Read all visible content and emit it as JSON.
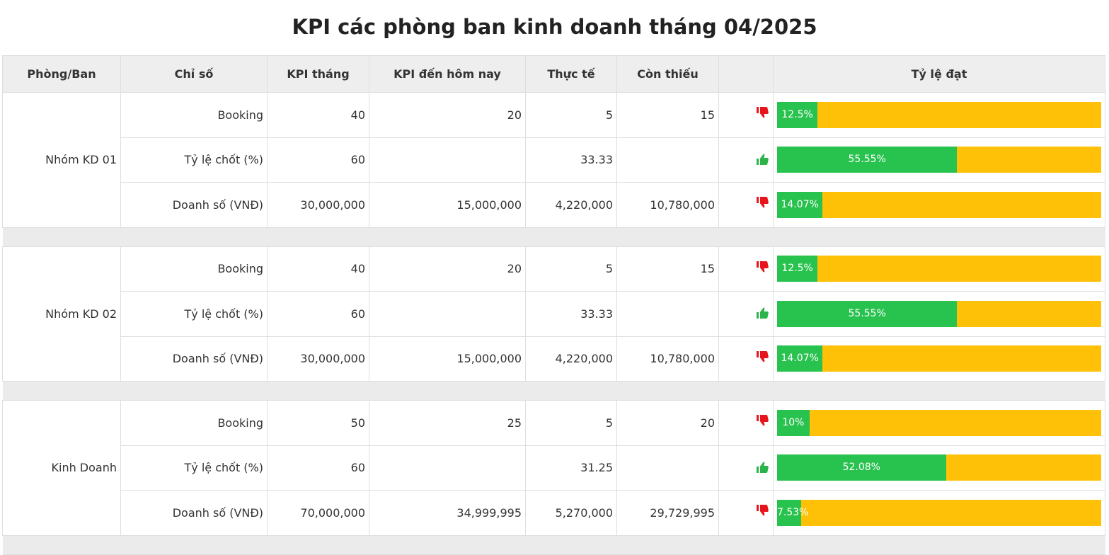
{
  "title": "KPI các phòng ban kinh doanh tháng 04/2025",
  "headers": {
    "dept": "Phòng/Ban",
    "metric": "Chỉ số",
    "kpi_month": "KPI tháng",
    "kpi_today": "KPI đến hôm nay",
    "actual": "Thực tế",
    "remaining": "Còn thiếu",
    "status": "",
    "rate": "Tỷ lệ đạt"
  },
  "colors": {
    "bar_fill": "#28c24e",
    "bar_background": "#ffc107",
    "thumb_up": "#2bb44a",
    "thumb_down": "#e8141c"
  },
  "groups": [
    {
      "name": "Nhóm KD 01",
      "rows": [
        {
          "metric": "Booking",
          "kpi_month": "40",
          "kpi_today": "20",
          "actual": "5",
          "remaining": "15",
          "status": "thumbs-down-icon",
          "rate": 12.5,
          "rate_label": "12.5%"
        },
        {
          "metric": "Tỷ lệ chốt (%)",
          "kpi_month": "60",
          "kpi_today": "",
          "actual": "33.33",
          "remaining": "",
          "status": "thumbs-up-icon",
          "rate": 55.55,
          "rate_label": "55.55%"
        },
        {
          "metric": "Doanh số (VNĐ)",
          "kpi_month": "30,000,000",
          "kpi_today": "15,000,000",
          "actual": "4,220,000",
          "remaining": "10,780,000",
          "status": "thumbs-down-icon",
          "rate": 14.07,
          "rate_label": "14.07%"
        }
      ]
    },
    {
      "name": "Nhóm KD 02",
      "rows": [
        {
          "metric": "Booking",
          "kpi_month": "40",
          "kpi_today": "20",
          "actual": "5",
          "remaining": "15",
          "status": "thumbs-down-icon",
          "rate": 12.5,
          "rate_label": "12.5%"
        },
        {
          "metric": "Tỷ lệ chốt (%)",
          "kpi_month": "60",
          "kpi_today": "",
          "actual": "33.33",
          "remaining": "",
          "status": "thumbs-up-icon",
          "rate": 55.55,
          "rate_label": "55.55%"
        },
        {
          "metric": "Doanh số (VNĐ)",
          "kpi_month": "30,000,000",
          "kpi_today": "15,000,000",
          "actual": "4,220,000",
          "remaining": "10,780,000",
          "status": "thumbs-down-icon",
          "rate": 14.07,
          "rate_label": "14.07%"
        }
      ]
    },
    {
      "name": "Kinh Doanh",
      "rows": [
        {
          "metric": "Booking",
          "kpi_month": "50",
          "kpi_today": "25",
          "actual": "5",
          "remaining": "20",
          "status": "thumbs-down-icon",
          "rate": 10,
          "rate_label": "10%"
        },
        {
          "metric": "Tỷ lệ chốt (%)",
          "kpi_month": "60",
          "kpi_today": "",
          "actual": "31.25",
          "remaining": "",
          "status": "thumbs-up-icon",
          "rate": 52.08,
          "rate_label": "52.08%"
        },
        {
          "metric": "Doanh số (VNĐ)",
          "kpi_month": "70,000,000",
          "kpi_today": "34,999,995",
          "actual": "5,270,000",
          "remaining": "29,729,995",
          "status": "thumbs-down-icon",
          "rate": 7.53,
          "rate_label": "7.53%"
        }
      ]
    }
  ]
}
